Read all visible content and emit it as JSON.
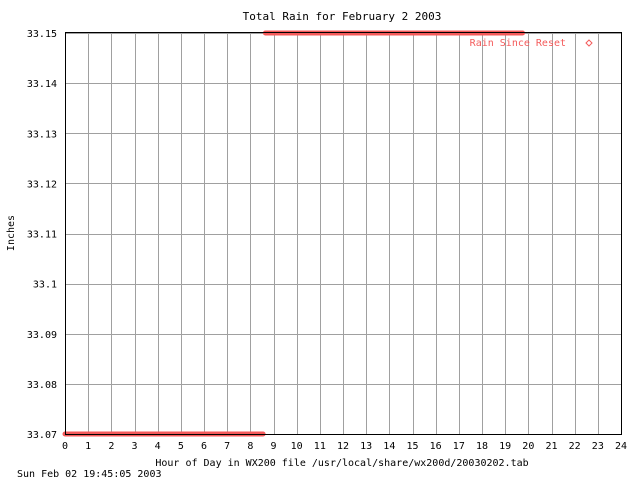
{
  "chart_data": {
    "type": "scatter",
    "title": "Total Rain for February  2 2003",
    "xlabel": "Hour of Day in WX200 file /usr/local/share/wx200d/20030202.tab",
    "ylabel": "Inches",
    "xlim": [
      0,
      24
    ],
    "ylim": [
      33.07,
      33.15
    ],
    "x_ticks": [
      "0",
      "1",
      "2",
      "3",
      "4",
      "5",
      "6",
      "7",
      "8",
      "9",
      "10",
      "11",
      "12",
      "13",
      "14",
      "15",
      "16",
      "17",
      "18",
      "19",
      "20",
      "21",
      "22",
      "23",
      "24"
    ],
    "y_ticks": [
      "33.07",
      "33.08",
      "33.09",
      "33.1",
      "33.11",
      "33.12",
      "33.13",
      "33.14",
      "33.15"
    ],
    "grid": true,
    "legend_position": "top-right",
    "series": [
      {
        "name": "Rain Since Reset",
        "color": "#f45a5a",
        "marker": "diamond",
        "segments": [
          {
            "x_start": 0.0,
            "x_end": 8.55,
            "y": 33.07
          },
          {
            "x_start": 8.65,
            "x_end": 19.75,
            "y": 33.15
          }
        ]
      }
    ]
  },
  "footer": {
    "timestamp": "Sun Feb 02 19:45:05 2003"
  }
}
